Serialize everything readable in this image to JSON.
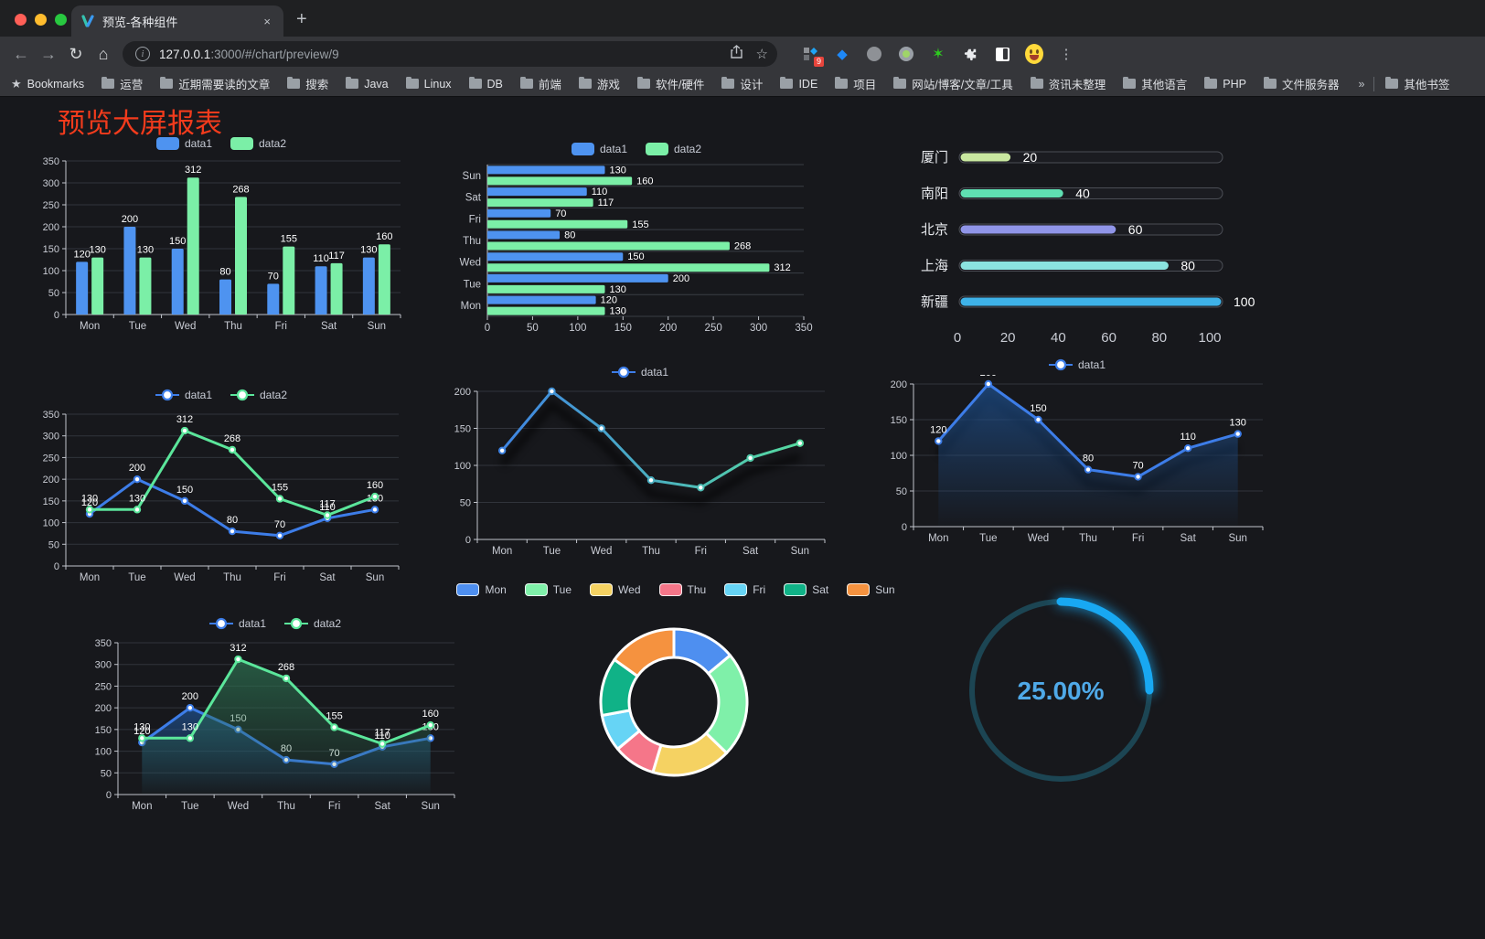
{
  "browser": {
    "traffic_lights": [
      "close",
      "minimize",
      "maximize"
    ],
    "tab": {
      "title": "预览-各种组件",
      "close_label": "×"
    },
    "new_tab_label": "+",
    "nav": {
      "back": "←",
      "forward": "→",
      "reload": "↻",
      "home": "⌂"
    },
    "url": {
      "host": "127.0.0.1",
      "rest": ":3000/#/chart/preview/9"
    },
    "omnibox_icons": [
      "share-icon",
      "bookmark-star-icon"
    ],
    "extensions": {
      "badge_count": "9"
    },
    "bookmarks_bar": {
      "first": {
        "icon": "star-filled",
        "label": "Bookmarks"
      },
      "folders": [
        "运营",
        "近期需要读的文章",
        "搜索",
        "Java",
        "Linux",
        "DB",
        "前端",
        "游戏",
        "软件/硬件",
        "设计",
        "IDE",
        "项目",
        "网站/博客/文章/工具",
        "资讯未整理",
        "其他语言",
        "PHP",
        "文件服务器"
      ],
      "overflow": "»",
      "other_bookmarks": "其他书签"
    },
    "menu_dots": "⋮"
  },
  "page": {
    "title": "预览大屏报表",
    "title_color": "#f23b1c",
    "background": "#17181c"
  },
  "chart_data": [
    {
      "type": "bar",
      "orientation": "vertical",
      "categories": [
        "Mon",
        "Tue",
        "Wed",
        "Thu",
        "Fri",
        "Sat",
        "Sun"
      ],
      "series": [
        {
          "name": "data1",
          "color": "#4e93f0",
          "values": [
            120,
            200,
            150,
            80,
            70,
            110,
            130
          ]
        },
        {
          "name": "data2",
          "color": "#7befa7",
          "values": [
            130,
            130,
            312,
            268,
            155,
            117,
            160
          ]
        }
      ],
      "ylim": [
        0,
        350
      ],
      "ytick_step": 50,
      "value_labels": true,
      "legend": {
        "marker": "rect",
        "position": "top"
      },
      "grid": true
    },
    {
      "type": "bar",
      "orientation": "horizontal",
      "categories": [
        "Mon",
        "Tue",
        "Wed",
        "Thu",
        "Fri",
        "Sat",
        "Sun"
      ],
      "series": [
        {
          "name": "data1",
          "color": "#4e93f0",
          "values": [
            120,
            200,
            150,
            80,
            70,
            110,
            130
          ]
        },
        {
          "name": "data2",
          "color": "#7befa7",
          "values": [
            130,
            130,
            312,
            268,
            155,
            117,
            160
          ]
        }
      ],
      "xlim": [
        0,
        350
      ],
      "xtick_step": 50,
      "value_labels": true,
      "legend": {
        "marker": "rect",
        "position": "top"
      },
      "grid": true
    },
    {
      "type": "progress",
      "items": [
        {
          "label": "厦门",
          "value": 20,
          "color": "#c9e8a0"
        },
        {
          "label": "南阳",
          "value": 40,
          "color": "#5fdfb2"
        },
        {
          "label": "北京",
          "value": 60,
          "color": "#9095e8"
        },
        {
          "label": "上海",
          "value": 80,
          "color": "#8be3e0"
        },
        {
          "label": "新疆",
          "value": 100,
          "color": "#3eb2e8"
        }
      ],
      "xlim": [
        0,
        100
      ],
      "xticks": [
        0,
        20,
        40,
        60,
        80,
        100
      ]
    },
    {
      "type": "line",
      "categories": [
        "Mon",
        "Tue",
        "Wed",
        "Thu",
        "Fri",
        "Sat",
        "Sun"
      ],
      "series": [
        {
          "name": "data1",
          "color": "#3d7de8",
          "values": [
            120,
            200,
            150,
            80,
            70,
            110,
            130
          ]
        },
        {
          "name": "data2",
          "color": "#5be69b",
          "values": [
            130,
            130,
            312,
            268,
            155,
            117,
            160
          ]
        }
      ],
      "ylim": [
        0,
        350
      ],
      "ytick_step": 50,
      "value_labels": true,
      "legend": {
        "marker": "circle",
        "position": "top"
      },
      "grid": true
    },
    {
      "type": "line",
      "categories": [
        "Mon",
        "Tue",
        "Wed",
        "Thu",
        "Fri",
        "Sat",
        "Sun"
      ],
      "series": [
        {
          "name": "data1",
          "color": "#3d7de8",
          "color2": "#58e29a",
          "gradient": true,
          "shadow": true,
          "values": [
            120,
            200,
            150,
            80,
            70,
            110,
            130
          ]
        }
      ],
      "ylim": [
        0,
        200
      ],
      "ytick_step": 50,
      "value_labels": false,
      "legend": {
        "marker": "circle",
        "position": "top"
      },
      "grid": true
    },
    {
      "type": "line",
      "categories": [
        "Mon",
        "Tue",
        "Wed",
        "Thu",
        "Fri",
        "Sat",
        "Sun"
      ],
      "series": [
        {
          "name": "data1",
          "color": "#3d7de8",
          "area": true,
          "area_color": "#1e4f8c",
          "shadow": true,
          "values": [
            120,
            200,
            150,
            80,
            70,
            110,
            130
          ]
        }
      ],
      "ylim": [
        0,
        200
      ],
      "ytick_step": 50,
      "value_labels": true,
      "legend": {
        "marker": "circle",
        "position": "top"
      },
      "grid": true
    },
    {
      "type": "line",
      "categories": [
        "Mon",
        "Tue",
        "Wed",
        "Thu",
        "Fri",
        "Sat",
        "Sun"
      ],
      "series": [
        {
          "name": "data1",
          "color": "#3d7de8",
          "area": true,
          "area_color": "#1e4f8c",
          "values": [
            120,
            200,
            150,
            80,
            70,
            110,
            130
          ]
        },
        {
          "name": "data2",
          "color": "#5be69b",
          "area": true,
          "area_color": "#2c6e4f",
          "values": [
            130,
            130,
            312,
            268,
            155,
            117,
            160
          ]
        }
      ],
      "ylim": [
        0,
        350
      ],
      "ytick_step": 50,
      "value_labels": true,
      "legend": {
        "marker": "circle",
        "position": "top"
      },
      "grid": true
    },
    {
      "type": "pie",
      "inner_radius": 49,
      "outer_radius": 80,
      "items": [
        {
          "label": "Mon",
          "value": 120,
          "color": "#4e8ff0"
        },
        {
          "label": "Tue",
          "value": 200,
          "color": "#7ff0a9"
        },
        {
          "label": "Wed",
          "value": 150,
          "color": "#f5d262"
        },
        {
          "label": "Thu",
          "value": 80,
          "color": "#f57689"
        },
        {
          "label": "Fri",
          "value": 70,
          "color": "#66d4f5"
        },
        {
          "label": "Sat",
          "value": 110,
          "color": "#10b287"
        },
        {
          "label": "Sun",
          "value": 130,
          "color": "#f5923f"
        }
      ],
      "legend": {
        "marker": "rect-border",
        "position": "top"
      }
    },
    {
      "type": "gauge",
      "value": 25,
      "label": "25.00%",
      "color": "#18a8f2",
      "track_color": "#1c4553",
      "text_color": "#4fa9e8"
    }
  ]
}
